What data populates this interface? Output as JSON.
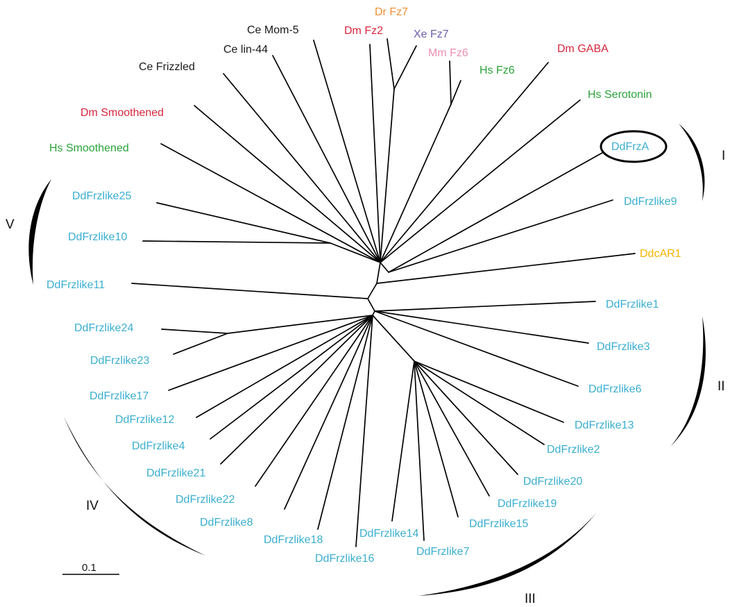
{
  "colors": {
    "black": "#1a1a1a",
    "red": "#d7263d",
    "orange": "#f08f33",
    "purple": "#6b5fae",
    "pink": "#eb8fb0",
    "green": "#2aa33a",
    "cyan": "#3aaed0",
    "yellow": "#f5b400"
  },
  "taxa": [
    {
      "id": "ce-frizzled",
      "name": "Ce Frizzled",
      "color": "black"
    },
    {
      "id": "ce-lin-44",
      "name": "Ce lin-44",
      "color": "black"
    },
    {
      "id": "ce-mom-5",
      "name": "Ce Mom-5",
      "color": "black"
    },
    {
      "id": "dm-fz2",
      "name": "Dm Fz2",
      "color": "red"
    },
    {
      "id": "dr-fz7",
      "name": "Dr Fz7",
      "color": "orange"
    },
    {
      "id": "xe-fz7",
      "name": "Xe Fz7",
      "color": "purple"
    },
    {
      "id": "mm-fz6",
      "name": "Mm Fz6",
      "color": "pink"
    },
    {
      "id": "hs-fz6",
      "name": "Hs Fz6",
      "color": "green"
    },
    {
      "id": "dm-gaba",
      "name": "Dm GABA",
      "color": "red"
    },
    {
      "id": "hs-serotonin",
      "name": "Hs Serotonin",
      "color": "green"
    },
    {
      "id": "dm-smoothened",
      "name": "Dm Smoothened",
      "color": "red"
    },
    {
      "id": "hs-smoothened",
      "name": "Hs Smoothened",
      "color": "green"
    },
    {
      "id": "ddfrza",
      "name": "DdFrzA",
      "color": "cyan"
    },
    {
      "id": "ddfrzlike9",
      "name": "DdFrzlike9",
      "color": "cyan"
    },
    {
      "id": "ddcar1",
      "name": "DdcAR1",
      "color": "yellow"
    },
    {
      "id": "ddfrzlike1",
      "name": "DdFrzlike1",
      "color": "cyan"
    },
    {
      "id": "ddfrzlike3",
      "name": "DdFrzlike3",
      "color": "cyan"
    },
    {
      "id": "ddfrzlike6",
      "name": "DdFrzlike6",
      "color": "cyan"
    },
    {
      "id": "ddfrzlike13",
      "name": "DdFrzlike13",
      "color": "cyan"
    },
    {
      "id": "ddfrzlike2",
      "name": "DdFrzlike2",
      "color": "cyan"
    },
    {
      "id": "ddfrzlike20",
      "name": "DdFrzlike20",
      "color": "cyan"
    },
    {
      "id": "ddfrzlike19",
      "name": "DdFrzlike19",
      "color": "cyan"
    },
    {
      "id": "ddfrzlike15",
      "name": "DdFrzlike15",
      "color": "cyan"
    },
    {
      "id": "ddfrzlike7",
      "name": "DdFrzlike7",
      "color": "cyan"
    },
    {
      "id": "ddfrzlike14",
      "name": "DdFrzlike14",
      "color": "cyan"
    },
    {
      "id": "ddfrzlike16",
      "name": "DdFrzlike16",
      "color": "cyan"
    },
    {
      "id": "ddfrzlike18",
      "name": "DdFrzlike18",
      "color": "cyan"
    },
    {
      "id": "ddfrzlike8",
      "name": "DdFrzlike8",
      "color": "cyan"
    },
    {
      "id": "ddfrzlike22",
      "name": "DdFrzlike22",
      "color": "cyan"
    },
    {
      "id": "ddfrzlike21",
      "name": "DdFrzlike21",
      "color": "cyan"
    },
    {
      "id": "ddfrzlike4",
      "name": "DdFrzlike4",
      "color": "cyan"
    },
    {
      "id": "ddfrzlike12",
      "name": "DdFrzlike12",
      "color": "cyan"
    },
    {
      "id": "ddfrzlike17",
      "name": "DdFrzlike17",
      "color": "cyan"
    },
    {
      "id": "ddfrzlike23",
      "name": "DdFrzlike23",
      "color": "cyan"
    },
    {
      "id": "ddfrzlike24",
      "name": "DdFrzlike24",
      "color": "cyan"
    },
    {
      "id": "ddfrzlike11",
      "name": "DdFrzlike11",
      "color": "cyan"
    },
    {
      "id": "ddfrzlike10",
      "name": "DdFrzlike10",
      "color": "cyan"
    },
    {
      "id": "ddfrzlike25",
      "name": "DdFrzlike25",
      "color": "cyan"
    }
  ],
  "groups": [
    "I",
    "II",
    "III",
    "IV",
    "V"
  ],
  "scale_bar": {
    "label": "0.1"
  },
  "highlighted_taxon": "DdFrzA"
}
